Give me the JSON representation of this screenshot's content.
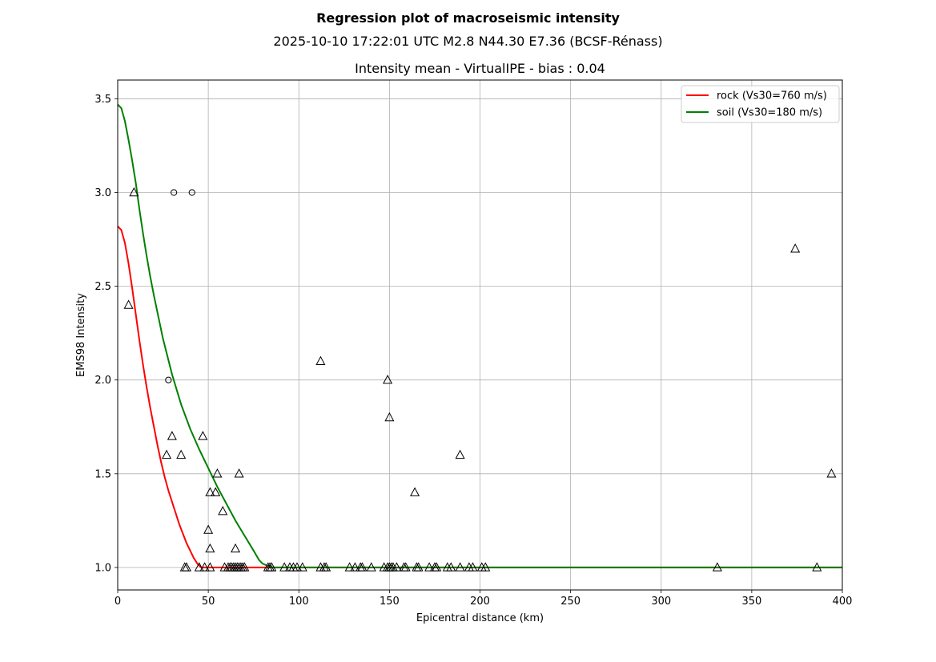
{
  "title": "Regression plot of macroseismic intensity",
  "subtitle": "2025-10-10 17:22:01 UTC M2.8 N44.30 E7.36 (BCSF-Rénass)",
  "chart_data": {
    "type": "scatter",
    "title": "Intensity mean - VirtualIPE - bias : 0.04",
    "xlabel": "Epicentral distance (km)",
    "ylabel": "EMS98 Intensity",
    "xlim": [
      0,
      400
    ],
    "ylim": [
      0.88,
      3.6
    ],
    "x_ticks": [
      0,
      50,
      100,
      150,
      200,
      250,
      300,
      350,
      400
    ],
    "x_tick_labels": [
      "0",
      "50",
      "100",
      "150",
      "200",
      "250",
      "300",
      "350",
      "400"
    ],
    "y_ticks": [
      1.0,
      1.5,
      2.0,
      2.5,
      3.0,
      3.5
    ],
    "y_tick_labels": [
      "1.0",
      "1.5",
      "2.0",
      "2.5",
      "3.0",
      "3.5"
    ],
    "grid": true,
    "legend_position": "top-right",
    "series": [
      {
        "name": "rock (Vs30=760 m/s)",
        "kind": "line",
        "color": "#ff0000",
        "x": [
          0,
          2,
          4,
          6,
          8,
          10,
          12,
          14,
          16,
          18,
          20,
          22,
          24,
          26,
          28,
          30,
          32,
          34,
          36,
          38,
          40,
          42,
          44,
          46,
          48,
          50,
          60,
          80,
          100,
          150,
          200,
          250,
          300,
          350,
          400
        ],
        "y": [
          2.82,
          2.8,
          2.73,
          2.62,
          2.49,
          2.35,
          2.21,
          2.08,
          1.96,
          1.85,
          1.75,
          1.65,
          1.56,
          1.48,
          1.41,
          1.35,
          1.29,
          1.23,
          1.18,
          1.13,
          1.09,
          1.05,
          1.02,
          1.0,
          1.0,
          1.0,
          1.0,
          1.0,
          1.0,
          1.0,
          1.0,
          1.0,
          1.0,
          1.0,
          1.0
        ]
      },
      {
        "name": "soil (Vs30=180 m/s)",
        "kind": "line",
        "color": "#008000",
        "x": [
          0,
          2,
          4,
          6,
          8,
          10,
          12,
          14,
          16,
          18,
          20,
          25,
          30,
          35,
          40,
          45,
          50,
          55,
          60,
          65,
          70,
          75,
          78,
          80,
          85,
          100,
          150,
          200,
          250,
          300,
          350,
          400
        ],
        "y": [
          3.47,
          3.45,
          3.38,
          3.28,
          3.17,
          3.05,
          2.91,
          2.78,
          2.66,
          2.55,
          2.45,
          2.22,
          2.03,
          1.87,
          1.74,
          1.63,
          1.53,
          1.43,
          1.34,
          1.25,
          1.17,
          1.09,
          1.04,
          1.02,
          1.0,
          1.0,
          1.0,
          1.0,
          1.0,
          1.0,
          1.0,
          1.0
        ]
      },
      {
        "kind": "points",
        "marker": "circle",
        "x": [
          31,
          41,
          28
        ],
        "y": [
          3.0,
          3.0,
          2.0
        ]
      },
      {
        "kind": "points",
        "marker": "triangle",
        "x": [
          9,
          6,
          27,
          30,
          35,
          47,
          50,
          51,
          51,
          54,
          55,
          58,
          65,
          67,
          112,
          149,
          150,
          164,
          189,
          374,
          394,
          37,
          38,
          45,
          48,
          51,
          59,
          61,
          62,
          63,
          64,
          65,
          66,
          67,
          68,
          69,
          70,
          83,
          84,
          85,
          92,
          95,
          97,
          99,
          102,
          112,
          114,
          115,
          128,
          131,
          134,
          135,
          140,
          147,
          149,
          150,
          151,
          152,
          154,
          158,
          159,
          165,
          166,
          172,
          175,
          176,
          182,
          184,
          189,
          194,
          196,
          201,
          203,
          331,
          386
        ],
        "y": [
          3.0,
          2.4,
          1.6,
          1.7,
          1.6,
          1.7,
          1.2,
          1.1,
          1.4,
          1.4,
          1.5,
          1.3,
          1.1,
          1.5,
          2.1,
          2.0,
          1.8,
          1.4,
          1.6,
          2.7,
          1.5,
          1.0,
          1.0,
          1.0,
          1.0,
          1.0,
          1.0,
          1.0,
          1.0,
          1.0,
          1.0,
          1.0,
          1.0,
          1.0,
          1.0,
          1.0,
          1.0,
          1.0,
          1.0,
          1.0,
          1.0,
          1.0,
          1.0,
          1.0,
          1.0,
          1.0,
          1.0,
          1.0,
          1.0,
          1.0,
          1.0,
          1.0,
          1.0,
          1.0,
          1.0,
          1.0,
          1.0,
          1.0,
          1.0,
          1.0,
          1.0,
          1.0,
          1.0,
          1.0,
          1.0,
          1.0,
          1.0,
          1.0,
          1.0,
          1.0,
          1.0,
          1.0,
          1.0,
          1.0,
          1.0
        ]
      }
    ]
  }
}
